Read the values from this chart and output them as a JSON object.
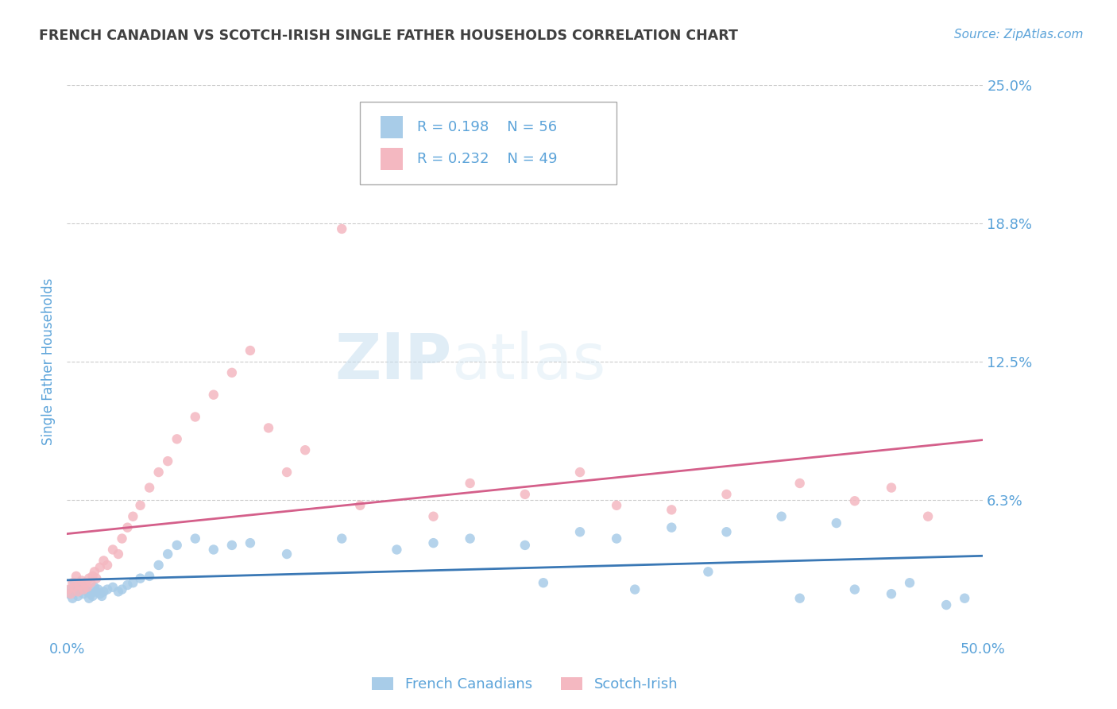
{
  "title": "FRENCH CANADIAN VS SCOTCH-IRISH SINGLE FATHER HOUSEHOLDS CORRELATION CHART",
  "source_text": "Source: ZipAtlas.com",
  "ylabel": "Single Father Households",
  "xlim": [
    0,
    0.5
  ],
  "ylim": [
    0,
    0.25
  ],
  "yticks": [
    0.0,
    0.0625,
    0.125,
    0.1875,
    0.25
  ],
  "ytick_labels": [
    "",
    "6.3%",
    "12.5%",
    "18.8%",
    "25.0%"
  ],
  "watermark_zip": "ZIP",
  "watermark_atlas": "atlas",
  "blue_color": "#a8cce8",
  "pink_color": "#f4b8c1",
  "blue_line_color": "#3a78b5",
  "pink_line_color": "#d45f8a",
  "legend_label1": "French Canadians",
  "legend_label2": "Scotch-Irish",
  "background_color": "#ffffff",
  "grid_color": "#cccccc",
  "title_color": "#404040",
  "axis_label_color": "#5ba3d9",
  "tick_label_color": "#5ba3d9",
  "french_canadian_x": [
    0.001,
    0.002,
    0.003,
    0.004,
    0.005,
    0.006,
    0.007,
    0.008,
    0.009,
    0.01,
    0.011,
    0.012,
    0.013,
    0.014,
    0.015,
    0.016,
    0.017,
    0.018,
    0.019,
    0.02,
    0.022,
    0.025,
    0.028,
    0.03,
    0.033,
    0.036,
    0.04,
    0.045,
    0.05,
    0.055,
    0.06,
    0.07,
    0.08,
    0.09,
    0.1,
    0.12,
    0.15,
    0.18,
    0.2,
    0.22,
    0.25,
    0.28,
    0.3,
    0.33,
    0.36,
    0.39,
    0.42,
    0.45,
    0.48,
    0.26,
    0.31,
    0.35,
    0.4,
    0.43,
    0.46,
    0.49
  ],
  "french_canadian_y": [
    0.02,
    0.022,
    0.018,
    0.025,
    0.021,
    0.019,
    0.023,
    0.024,
    0.02,
    0.022,
    0.021,
    0.018,
    0.02,
    0.019,
    0.023,
    0.021,
    0.022,
    0.02,
    0.019,
    0.021,
    0.022,
    0.023,
    0.021,
    0.022,
    0.024,
    0.025,
    0.027,
    0.028,
    0.033,
    0.038,
    0.042,
    0.045,
    0.04,
    0.042,
    0.043,
    0.038,
    0.045,
    0.04,
    0.043,
    0.045,
    0.042,
    0.048,
    0.045,
    0.05,
    0.048,
    0.055,
    0.052,
    0.02,
    0.015,
    0.025,
    0.022,
    0.03,
    0.018,
    0.022,
    0.025,
    0.018
  ],
  "scotch_irish_x": [
    0.001,
    0.002,
    0.003,
    0.004,
    0.005,
    0.006,
    0.007,
    0.008,
    0.009,
    0.01,
    0.011,
    0.012,
    0.013,
    0.014,
    0.015,
    0.016,
    0.018,
    0.02,
    0.022,
    0.025,
    0.028,
    0.03,
    0.033,
    0.036,
    0.04,
    0.045,
    0.05,
    0.055,
    0.06,
    0.07,
    0.08,
    0.09,
    0.1,
    0.11,
    0.13,
    0.15,
    0.2,
    0.25,
    0.3,
    0.33,
    0.36,
    0.4,
    0.43,
    0.45,
    0.47,
    0.12,
    0.16,
    0.22,
    0.28
  ],
  "scotch_irish_y": [
    0.022,
    0.02,
    0.025,
    0.023,
    0.028,
    0.021,
    0.024,
    0.026,
    0.022,
    0.025,
    0.023,
    0.027,
    0.025,
    0.028,
    0.03,
    0.027,
    0.032,
    0.035,
    0.033,
    0.04,
    0.038,
    0.045,
    0.05,
    0.055,
    0.06,
    0.068,
    0.075,
    0.08,
    0.09,
    0.1,
    0.11,
    0.12,
    0.13,
    0.095,
    0.085,
    0.185,
    0.055,
    0.065,
    0.06,
    0.058,
    0.065,
    0.07,
    0.062,
    0.068,
    0.055,
    0.075,
    0.06,
    0.07,
    0.075
  ]
}
